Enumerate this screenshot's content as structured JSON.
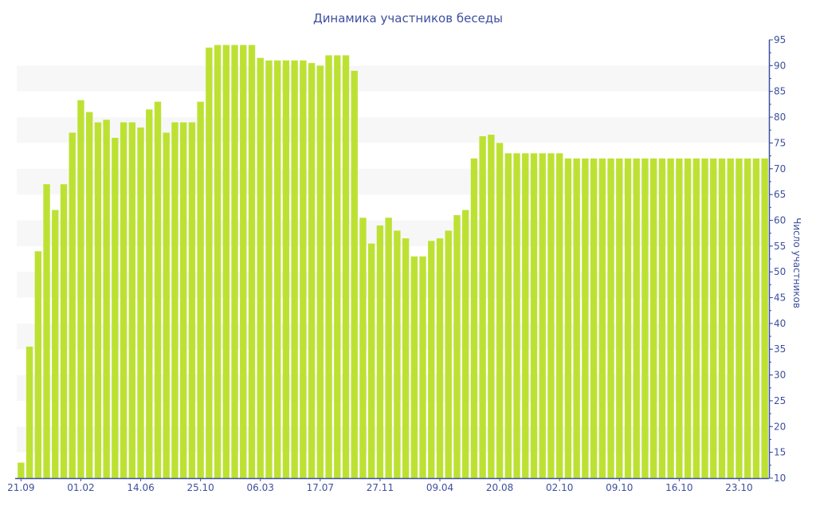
{
  "chart_data": {
    "type": "bar",
    "title": "Динамика участников беседы",
    "xlabel": "",
    "ylabel": "Число участников",
    "ylim": [
      10,
      95
    ],
    "y_ticks": [
      10,
      15,
      20,
      25,
      30,
      35,
      40,
      45,
      50,
      55,
      60,
      65,
      70,
      75,
      80,
      85,
      90,
      95
    ],
    "y_axis_side": "right",
    "grid": "alternating horizontal bands",
    "x_tick_labels": [
      "21.09",
      "01.02",
      "14.06",
      "25.10",
      "06.03",
      "17.07",
      "27.11",
      "09.04",
      "20.08",
      "02.10",
      "09.10",
      "16.10",
      "23.10"
    ],
    "x_tick_every_n_bars": 7,
    "values": [
      13,
      35.5,
      54,
      67,
      62,
      67,
      77,
      83.3,
      81,
      79,
      79.5,
      76,
      79,
      79,
      78,
      81.5,
      83,
      77,
      79,
      79,
      79,
      83,
      93.5,
      94,
      94,
      94,
      94,
      94,
      91.5,
      91,
      91,
      91,
      91,
      91,
      90.5,
      90,
      92,
      92,
      92,
      89,
      60.5,
      55.5,
      59,
      60.5,
      58,
      56.5,
      53,
      53,
      56,
      56.5,
      58,
      61,
      62,
      72,
      76.3,
      76.6,
      75,
      73,
      73,
      73,
      73,
      73,
      73,
      73,
      72,
      72,
      72,
      72,
      72,
      72,
      72,
      72,
      72,
      72,
      72,
      72,
      72,
      72,
      72,
      72,
      72,
      72,
      72,
      72,
      72,
      72,
      72,
      72
    ],
    "colors": {
      "bar": "#bde133",
      "axis": "#3d4f9e",
      "band": "#f7f7f7"
    }
  }
}
